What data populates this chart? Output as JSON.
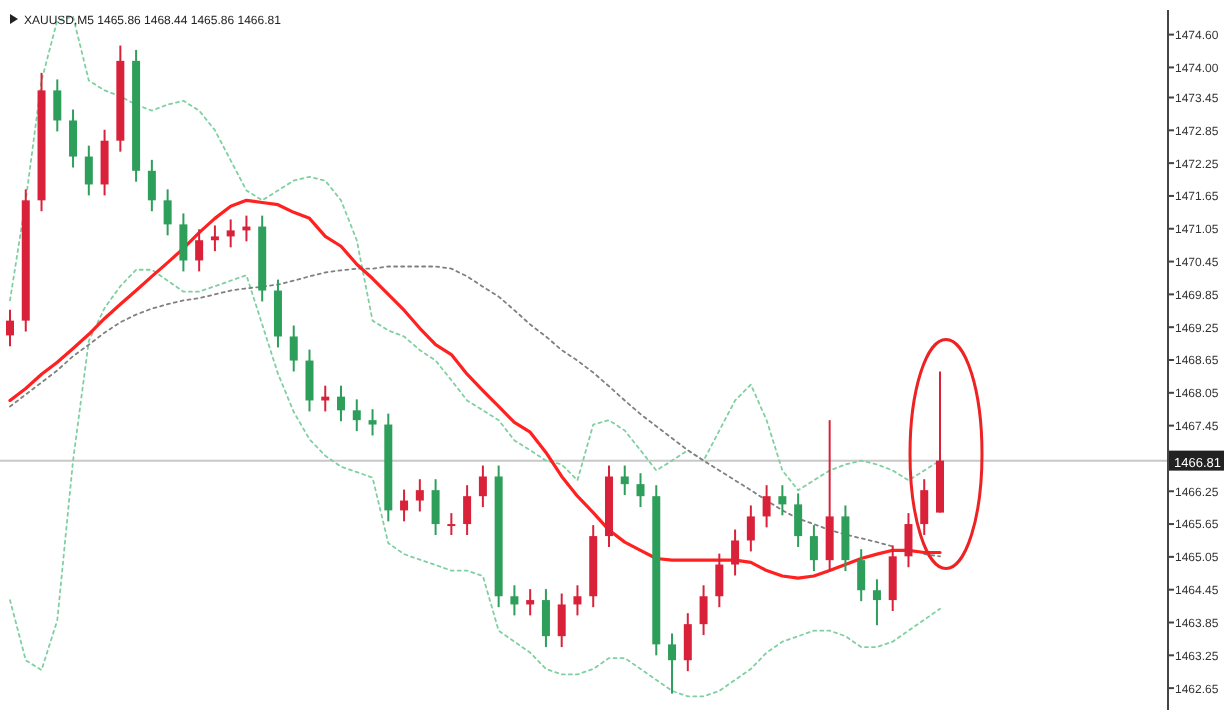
{
  "chart_data": {
    "type": "candlestick",
    "title": "XAUUSD,M5  1465.86 1468.44 1465.86 1466.81",
    "categories": [
      null,
      null,
      null,
      null,
      null,
      null,
      null,
      null,
      null,
      null,
      null,
      null,
      null,
      null,
      null,
      null,
      null,
      null,
      null,
      null,
      null,
      null,
      null,
      null,
      null,
      null,
      null,
      null,
      null,
      null,
      null,
      null,
      null,
      null,
      null,
      null,
      null,
      null,
      null,
      null,
      null,
      null,
      null,
      null,
      null,
      null,
      null,
      null,
      null,
      null,
      null,
      null,
      null,
      null,
      null,
      null,
      null,
      null,
      null,
      null
    ],
    "ohlc": [
      [
        1469.1,
        1469.57,
        1468.9,
        1469.37
      ],
      [
        1469.37,
        1471.77,
        1469.17,
        1471.57
      ],
      [
        1471.57,
        1473.9,
        1471.37,
        1473.58
      ],
      [
        1473.58,
        1473.78,
        1472.83,
        1473.03
      ],
      [
        1473.03,
        1473.23,
        1472.17,
        1472.37
      ],
      [
        1472.37,
        1472.57,
        1471.66,
        1471.86
      ],
      [
        1471.86,
        1472.86,
        1471.66,
        1472.66
      ],
      [
        1472.66,
        1474.4,
        1472.46,
        1474.12
      ],
      [
        1474.12,
        1474.32,
        1471.91,
        1472.11
      ],
      [
        1472.11,
        1472.31,
        1471.37,
        1471.57
      ],
      [
        1471.57,
        1471.77,
        1470.93,
        1471.13
      ],
      [
        1471.13,
        1471.33,
        1470.27,
        1470.47
      ],
      [
        1470.47,
        1471.04,
        1470.27,
        1470.84
      ],
      [
        1470.84,
        1471.11,
        1470.64,
        1470.91
      ],
      [
        1470.91,
        1471.22,
        1470.71,
        1471.02
      ],
      [
        1471.02,
        1471.29,
        1470.82,
        1471.09
      ],
      [
        1471.09,
        1471.29,
        1469.72,
        1469.92
      ],
      [
        1469.92,
        1470.12,
        1468.88,
        1469.08
      ],
      [
        1469.08,
        1469.28,
        1468.44,
        1468.64
      ],
      [
        1468.64,
        1468.84,
        1467.71,
        1467.91
      ],
      [
        1467.91,
        1468.18,
        1467.71,
        1467.98
      ],
      [
        1467.98,
        1468.18,
        1467.53,
        1467.73
      ],
      [
        1467.73,
        1467.93,
        1467.35,
        1467.55
      ],
      [
        1467.55,
        1467.75,
        1467.27,
        1467.47
      ],
      [
        1467.47,
        1467.67,
        1465.7,
        1465.9
      ],
      [
        1465.9,
        1466.28,
        1465.7,
        1466.08
      ],
      [
        1466.08,
        1466.47,
        1465.88,
        1466.27
      ],
      [
        1466.27,
        1466.47,
        1465.45,
        1465.65
      ],
      [
        1465.65,
        1465.85,
        1465.45,
        1465.65
      ],
      [
        1465.65,
        1466.36,
        1465.45,
        1466.16
      ],
      [
        1466.16,
        1466.72,
        1465.96,
        1466.52
      ],
      [
        1466.52,
        1466.72,
        1464.13,
        1464.33
      ],
      [
        1464.33,
        1464.53,
        1463.98,
        1464.18
      ],
      [
        1464.18,
        1464.46,
        1463.98,
        1464.26
      ],
      [
        1464.26,
        1464.46,
        1463.4,
        1463.6
      ],
      [
        1463.6,
        1464.38,
        1463.4,
        1464.18
      ],
      [
        1464.18,
        1464.53,
        1463.98,
        1464.33
      ],
      [
        1464.33,
        1465.63,
        1464.13,
        1465.43
      ],
      [
        1465.43,
        1466.72,
        1465.23,
        1466.52
      ],
      [
        1466.52,
        1466.72,
        1466.18,
        1466.38
      ],
      [
        1466.38,
        1466.58,
        1465.96,
        1466.16
      ],
      [
        1466.16,
        1466.36,
        1463.25,
        1463.45
      ],
      [
        1463.45,
        1463.65,
        1462.55,
        1463.16
      ],
      [
        1463.16,
        1464.02,
        1462.96,
        1463.82
      ],
      [
        1463.82,
        1464.53,
        1463.62,
        1464.33
      ],
      [
        1464.33,
        1465.11,
        1464.13,
        1464.91
      ],
      [
        1464.91,
        1465.55,
        1464.71,
        1465.35
      ],
      [
        1465.35,
        1465.99,
        1465.15,
        1465.79
      ],
      [
        1465.79,
        1466.36,
        1465.59,
        1466.16
      ],
      [
        1466.16,
        1466.36,
        1465.81,
        1466.01
      ],
      [
        1466.01,
        1466.21,
        1465.23,
        1465.43
      ],
      [
        1465.43,
        1465.63,
        1464.79,
        1464.99
      ],
      [
        1464.99,
        1467.55,
        1464.79,
        1465.79
      ],
      [
        1465.79,
        1465.99,
        1464.79,
        1464.99
      ],
      [
        1464.99,
        1465.19,
        1464.24,
        1464.44
      ],
      [
        1464.44,
        1464.64,
        1463.8,
        1464.26
      ],
      [
        1464.26,
        1465.26,
        1464.06,
        1465.06
      ],
      [
        1465.06,
        1465.85,
        1464.86,
        1465.65
      ],
      [
        1465.65,
        1466.47,
        1465.45,
        1466.27
      ],
      [
        1465.86,
        1468.44,
        1465.86,
        1466.81
      ]
    ],
    "colors": [
      "#d9223a",
      "#d9223a",
      "#d9223a",
      "#2e9e5b",
      "#2e9e5b",
      "#2e9e5b",
      "#d9223a",
      "#d9223a",
      "#2e9e5b",
      "#2e9e5b",
      "#2e9e5b",
      "#2e9e5b",
      "#d9223a",
      "#d9223a",
      "#d9223a",
      "#d9223a",
      "#2e9e5b",
      "#2e9e5b",
      "#2e9e5b",
      "#2e9e5b",
      "#d9223a",
      "#2e9e5b",
      "#2e9e5b",
      "#2e9e5b",
      "#2e9e5b",
      "#d9223a",
      "#d9223a",
      "#2e9e5b",
      "#d9223a",
      "#d9223a",
      "#d9223a",
      "#2e9e5b",
      "#2e9e5b",
      "#d9223a",
      "#2e9e5b",
      "#d9223a",
      "#d9223a",
      "#d9223a",
      "#d9223a",
      "#2e9e5b",
      "#2e9e5b",
      "#2e9e5b",
      "#2e9e5b",
      "#d9223a",
      "#d9223a",
      "#d9223a",
      "#d9223a",
      "#d9223a",
      "#d9223a",
      "#2e9e5b",
      "#2e9e5b",
      "#2e9e5b",
      "#d9223a",
      "#2e9e5b",
      "#2e9e5b",
      "#2e9e5b",
      "#d9223a",
      "#d9223a",
      "#d9223a",
      "#d9223a"
    ],
    "series": [
      {
        "type": "line",
        "color": "#7fd0a0",
        "line_style": "dotted",
        "values": [
          1469.74,
          1471.57,
          1473.76,
          1474.86,
          1474.93,
          1473.76,
          1473.58,
          1473.47,
          1473.32,
          1473.21,
          1473.32,
          1473.39,
          1473.21,
          1472.85,
          1472.3,
          1471.75,
          1471.57,
          1471.75,
          1471.93,
          1472.0,
          1471.93,
          1471.57,
          1470.84,
          1469.37,
          1469.19,
          1469.08,
          1468.83,
          1468.64,
          1468.28,
          1467.91,
          1467.73,
          1467.55,
          1467.18,
          1467.0,
          1466.81,
          1466.74,
          1466.45,
          1467.47,
          1467.55,
          1467.36,
          1467.0,
          1466.63,
          1466.81,
          1467.0,
          1466.81,
          1467.36,
          1467.91,
          1468.2,
          1467.55,
          1466.63,
          1466.27,
          1466.45,
          1466.63,
          1466.74,
          1466.81,
          1466.74,
          1466.63,
          1466.45,
          1466.63,
          1466.81
        ]
      },
      {
        "type": "line",
        "color": "#7fd0a0",
        "line_style": "dotted",
        "values": [
          1464.26,
          1463.16,
          1462.98,
          1463.89,
          1466.81,
          1469.0,
          1469.6,
          1470.0,
          1470.3,
          1470.3,
          1470.1,
          1469.9,
          1469.9,
          1470.0,
          1470.1,
          1470.2,
          1469.3,
          1468.4,
          1467.7,
          1467.2,
          1466.9,
          1466.7,
          1466.6,
          1466.5,
          1465.3,
          1465.1,
          1465.0,
          1464.9,
          1464.8,
          1464.8,
          1464.7,
          1463.7,
          1463.5,
          1463.3,
          1463.0,
          1462.9,
          1462.9,
          1463.0,
          1463.2,
          1463.2,
          1463.0,
          1462.8,
          1462.6,
          1462.5,
          1462.5,
          1462.6,
          1462.8,
          1463.0,
          1463.3,
          1463.5,
          1463.6,
          1463.7,
          1463.7,
          1463.6,
          1463.4,
          1463.4,
          1463.5,
          1463.7,
          1463.9,
          1464.1
        ]
      },
      {
        "type": "line",
        "color": "#808080",
        "line_style": "dotted",
        "values": [
          1467.8,
          1468.02,
          1468.24,
          1468.46,
          1468.72,
          1468.93,
          1469.15,
          1469.34,
          1469.48,
          1469.59,
          1469.67,
          1469.74,
          1469.78,
          1469.85,
          1469.92,
          1469.96,
          1469.99,
          1470.03,
          1470.1,
          1470.18,
          1470.25,
          1470.29,
          1470.32,
          1470.32,
          1470.36,
          1470.36,
          1470.36,
          1470.36,
          1470.32,
          1470.18,
          1469.99,
          1469.81,
          1469.56,
          1469.3,
          1469.08,
          1468.83,
          1468.64,
          1468.42,
          1468.17,
          1467.91,
          1467.66,
          1467.44,
          1467.22,
          1467.0,
          1466.81,
          1466.63,
          1466.45,
          1466.27,
          1466.08,
          1465.9,
          1465.75,
          1465.65,
          1465.54,
          1465.46,
          1465.39,
          1465.32,
          1465.24,
          null,
          1465.1,
          1465.06
        ]
      },
      {
        "type": "line",
        "color": "#ff2020",
        "line_style": "solid",
        "values": [
          1467.91,
          1468.13,
          1468.39,
          1468.61,
          1468.86,
          1469.12,
          1469.41,
          1469.67,
          1469.92,
          1470.18,
          1470.43,
          1470.69,
          1470.98,
          1471.24,
          1471.46,
          1471.57,
          1471.53,
          1471.49,
          1471.35,
          1471.24,
          1470.91,
          1470.73,
          1470.4,
          1470.14,
          1469.85,
          1469.56,
          1469.23,
          1468.93,
          1468.75,
          1468.39,
          1468.09,
          1467.8,
          1467.51,
          1467.33,
          1466.96,
          1466.52,
          1466.16,
          1465.86,
          1465.54,
          1465.32,
          1465.17,
          1465.02,
          1464.99,
          1464.99,
          1464.99,
          1464.99,
          1464.99,
          1464.95,
          1464.8,
          1464.7,
          1464.66,
          1464.7,
          1464.8,
          1464.91,
          1465.02,
          1465.1,
          1465.17,
          1465.17,
          1465.13,
          1465.13
        ]
      }
    ],
    "ylim": [
      1462.25,
      1475.05
    ],
    "yticks": [
      {
        "value": 1474.6,
        "label": "1474.60"
      },
      {
        "value": 1474.0,
        "label": "1474.00"
      },
      {
        "value": 1473.45,
        "label": "1473.45"
      },
      {
        "value": 1472.85,
        "label": "1472.85"
      },
      {
        "value": 1472.25,
        "label": "1472.25"
      },
      {
        "value": 1471.65,
        "label": "1471.65"
      },
      {
        "value": 1471.05,
        "label": "1471.05"
      },
      {
        "value": 1470.45,
        "label": "1470.45"
      },
      {
        "value": 1469.85,
        "label": "1469.85"
      },
      {
        "value": 1469.25,
        "label": "1469.25"
      },
      {
        "value": 1468.65,
        "label": "1468.65"
      },
      {
        "value": 1468.05,
        "label": "1468.05"
      },
      {
        "value": 1467.45,
        "label": "1467.45"
      },
      {
        "value": 1466.25,
        "label": "1466.25"
      },
      {
        "value": 1465.65,
        "label": "1465.65"
      },
      {
        "value": 1465.05,
        "label": "1465.05"
      },
      {
        "value": 1464.45,
        "label": "1464.45"
      },
      {
        "value": 1463.85,
        "label": "1463.85"
      },
      {
        "value": 1463.25,
        "label": "1463.25"
      },
      {
        "value": 1462.65,
        "label": "1462.65"
      }
    ],
    "ref_lines": [
      {
        "axis": "y",
        "value": 1466.81,
        "label": "1466.81",
        "color": "#c8c8c8"
      }
    ],
    "tick_labels": "y"
  }
}
